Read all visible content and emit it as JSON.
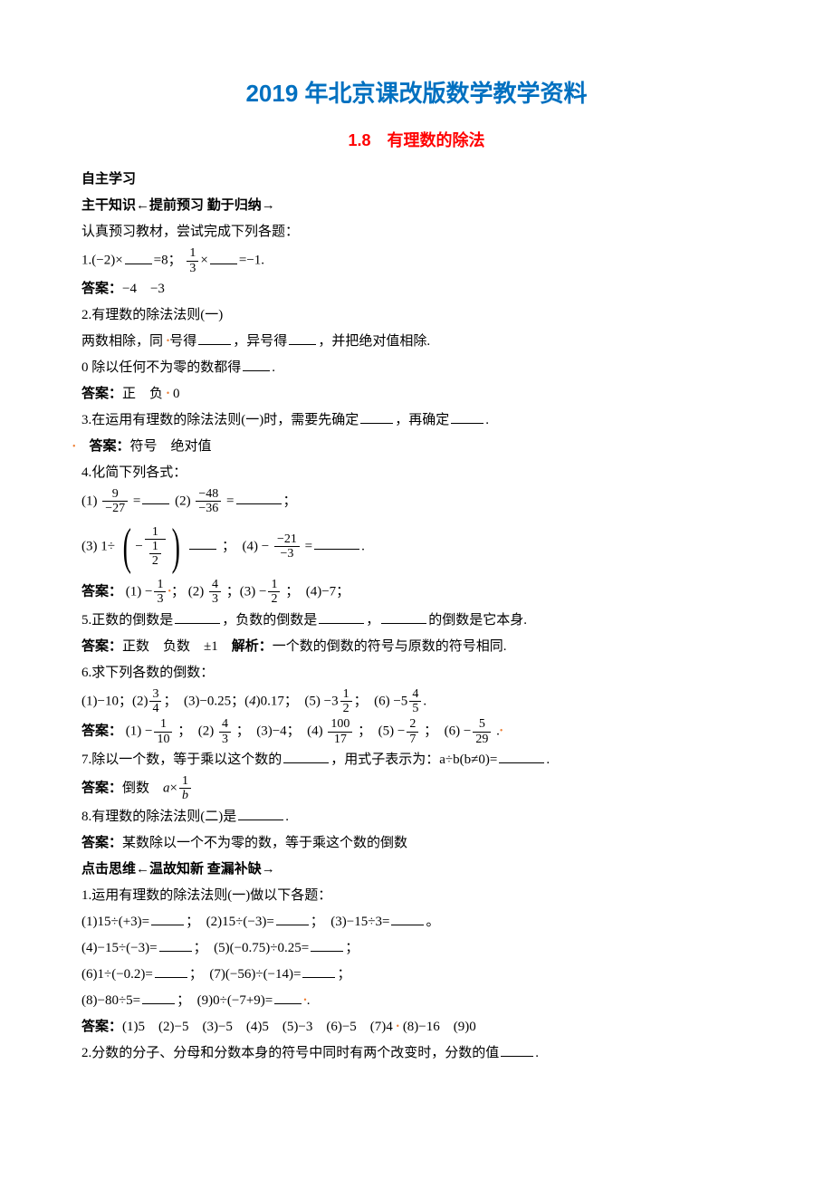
{
  "title": "2019 年北京课改版数学教学资料",
  "subtitle": "1.8　有理数的除法",
  "heading_zizhu": "自主学习",
  "heading_zhugan": "主干知识←提前预习 勤于归纳→",
  "intro": "认真预习教材，尝试完成下列各题：",
  "q1_prefix": "1.(−2)×",
  "q1_mid": "=8；",
  "q1_suffix": "×",
  "q1_end": "=−1.",
  "q1_frac_num": "1",
  "q1_frac_den": "3",
  "a1_label": "答案：",
  "a1_text": "−4　−3",
  "q2_label": "2.有理数的除法法则(一)",
  "q2_line2a": "两数相除，同 ",
  "q2_line2b": "号得",
  "q2_line2c": "，异号得",
  "q2_line2d": "，并把绝对值相除.",
  "q2_line3a": "0 除以任何不为零的数都得",
  "q2_line3b": ".",
  "a2_label": "答案：",
  "a2_text_a": "正　负 ",
  "a2_text_b": " 0",
  "q3a": "3.在运用有理数的除法法则(一)时，需要先确定",
  "q3b": "，再确定",
  "q3c": ".",
  "a3_label": "答案：",
  "a3_text": "符号　绝对值",
  "q4_label": "4.化简下列各式：",
  "q4_1_pre": "(1)",
  "q4_1_frac_num": "9",
  "q4_1_frac_den": "−27",
  "q4_1_eq": "=",
  "q4_2_pre": "(2)",
  "q4_2_frac_num": "−48",
  "q4_2_frac_den": "−36",
  "q4_2_eq": "=",
  "q4_2_end": "；",
  "q4_3_pre": "(3) 1÷",
  "q4_3_minus": "−",
  "q4_3_outer_num": "1",
  "q4_3_inner_num": "1",
  "q4_3_inner_den": "2",
  "q4_3_end": "；　(4) −",
  "q4_4_frac_num": "−21",
  "q4_4_frac_den": "−3",
  "q4_4_eq": "=",
  "q4_4_end": ".",
  "a4_label": "答案：",
  "a4_1": "(1) −",
  "a4_1_num": "1",
  "a4_1_den": "3",
  "a4_semi1": "；",
  "a4_2": "(2) ",
  "a4_2_num": "4",
  "a4_2_den": "3",
  "a4_semi2": "；(3) −",
  "a4_3_num": "1",
  "a4_3_den": "2",
  "a4_semi3": "；　(4)−7；",
  "q5a": "5.正数的倒数是",
  "q5b": "，负数的倒数是",
  "q5c": "，",
  "q5d": "的倒数是它本身.",
  "a5_label": "答案：",
  "a5_text": "正数　负数　±1　",
  "a5_jiexi": "解析：",
  "a5_jiexi_text": "一个数的倒数的符号与原数的符号相同.",
  "q6_label": "6.求下列各数的倒数：",
  "q6_1": "(1)−10；(2)",
  "q6_2_num": "3",
  "q6_2_den": "4",
  "q6_3": "；　(3)−0.25；(",
  "q6_4_italic": "4",
  "q6_4b": ")0.17；　(5) −3",
  "q6_5_num": "1",
  "q6_5_den": "2",
  "q6_6a": "；　(6) −5",
  "q6_6_num": "4",
  "q6_6_den": "5",
  "q6_6b": ".",
  "a6_label": "答案：",
  "a6_1": "(1) −",
  "a6_1_num": "1",
  "a6_1_den": "10",
  "a6_2": "；　(2) ",
  "a6_2_num": "4",
  "a6_2_den": "3",
  "a6_3": "；　(3)−4；　(4) ",
  "a6_4_num": "100",
  "a6_4_den": "17",
  "a6_5": "；　(5) −",
  "a6_5_num": "2",
  "a6_5_den": "7",
  "a6_6": "；　(6) −",
  "a6_6_num": "5",
  "a6_6_den": "29",
  "a6_7": " .",
  "q7a": "7.除以一个数，等于乘以这个数的",
  "q7b": "，用式子表示为：a÷b(b≠0)=",
  "q7c": ".",
  "a7_label": "答案：",
  "a7_text": "倒数　",
  "a7_expr_a": "a",
  "a7_expr_mul": "×",
  "a7_frac_num": "1",
  "a7_frac_den": "b",
  "q8a": "8.有理数的除法法则(二)是",
  "q8b": ".",
  "a8_label": "答案：",
  "a8_text": "某数除以一个不为零的数，等于乘这个数的倒数",
  "heading_dianji": "点击思维←温故知新 查漏补缺→",
  "p1_label": "1.运用有理数的除法法则(一)做以下各题：",
  "p1_1a": "(1)15÷(+3)=",
  "p1_1b": "；　(2)15÷(−3)=",
  "p1_1c": "；　(3)−15÷3=",
  "p1_1d": "。",
  "p1_2a": "(4)−15÷(−3)=",
  "p1_2b": "；　(5)(−0.75)÷0.25=",
  "p1_2c": "；",
  "p1_3a": "(6)1÷(−0.2)=",
  "p1_3b": "；　(7)(−56)÷(−14)=",
  "p1_3c": "；",
  "p1_4a": "(8)−80÷5=",
  "p1_4b": "；　(9)0÷(−7+9)=",
  "p1_4c": ".",
  "pa1_label": "答案：",
  "pa1_text_a": "(1)5　(2)−5　(3)−5　(4)5　(5)−3　(6)−5　(7)4 ",
  "pa1_text_b": " (8)−16　(9)0",
  "p2a": "2.分数的分子、分母和分数本身的符号中同时有两个改变时，分数的值",
  "p2b": "."
}
